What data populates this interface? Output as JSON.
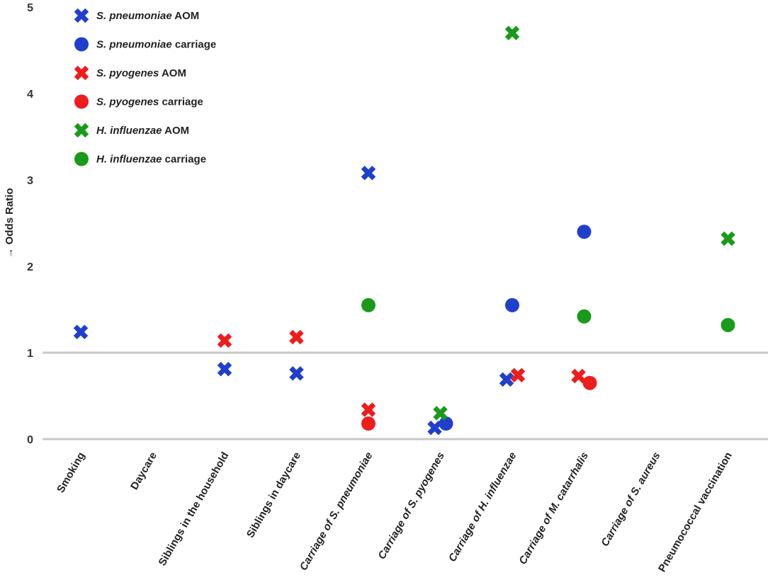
{
  "chart_data": {
    "type": "scatter",
    "ylabel": "→ Odds Ratio",
    "ylim": [
      0,
      5
    ],
    "yticks": [
      "0",
      "1",
      "2",
      "3",
      "4",
      "5"
    ],
    "reference_line": 1,
    "grid": false,
    "legend_position": "top-left",
    "categories": [
      {
        "prefix": "",
        "italic": "",
        "suffix": "Smoking"
      },
      {
        "prefix": "",
        "italic": "",
        "suffix": "Daycare"
      },
      {
        "prefix": "",
        "italic": "",
        "suffix": "Siblings in the household"
      },
      {
        "prefix": "",
        "italic": "",
        "suffix": "Siblings in daycare"
      },
      {
        "prefix": "",
        "italic": "Carriage of S. pneumoniae",
        "suffix": ""
      },
      {
        "prefix": "",
        "italic": "Carriage of S. pyogenes",
        "suffix": ""
      },
      {
        "prefix": "",
        "italic": "Carriage of H. influenzae",
        "suffix": ""
      },
      {
        "prefix": "",
        "italic": "Carriage of M. catarrhalis",
        "suffix": ""
      },
      {
        "prefix": "",
        "italic": "Carriage of S. aureus",
        "suffix": ""
      },
      {
        "prefix": "",
        "italic": "",
        "suffix": "Pneumococcal vaccination"
      }
    ],
    "series": [
      {
        "name": "S. pneumoniae AOM",
        "name_italic": "S. pneumoniae",
        "name_rest": " AOM",
        "color": "#1f3fcc",
        "marker": "cross",
        "points": [
          {
            "cat": 0,
            "value": 1.24
          },
          {
            "cat": 2,
            "value": 0.81
          },
          {
            "cat": 3,
            "value": 0.76
          },
          {
            "cat": 4,
            "value": 3.08
          },
          {
            "cat": 5,
            "value": 0.13
          },
          {
            "cat": 6,
            "value": 0.69
          }
        ]
      },
      {
        "name": "S. pneumoniae carriage",
        "name_italic": "S. pneumoniae",
        "name_rest": " carriage",
        "color": "#1f3fcc",
        "marker": "circle",
        "points": [
          {
            "cat": 5,
            "value": 0.18
          },
          {
            "cat": 6,
            "value": 1.55
          },
          {
            "cat": 7,
            "value": 2.4
          }
        ]
      },
      {
        "name": "S. pyogenes AOM",
        "name_italic": "S. pyogenes",
        "name_rest": " AOM",
        "color": "#ee1c1c",
        "marker": "cross",
        "points": [
          {
            "cat": 2,
            "value": 1.14
          },
          {
            "cat": 3,
            "value": 1.18
          },
          {
            "cat": 4,
            "value": 0.34
          },
          {
            "cat": 6,
            "value": 0.74
          },
          {
            "cat": 7,
            "value": 0.73
          }
        ]
      },
      {
        "name": "S. pyogenes carriage",
        "name_italic": "S. pyogenes",
        "name_rest": " carriage",
        "color": "#ee1c1c",
        "marker": "circle",
        "points": [
          {
            "cat": 4,
            "value": 0.18
          },
          {
            "cat": 7,
            "value": 0.65
          }
        ]
      },
      {
        "name": "H. influenzae AOM",
        "name_italic": "H. influenzae",
        "name_rest": " AOM",
        "color": "#1a9a1a",
        "marker": "cross",
        "points": [
          {
            "cat": 5,
            "value": 0.3
          },
          {
            "cat": 6,
            "value": 4.7
          },
          {
            "cat": 9,
            "value": 2.32
          }
        ]
      },
      {
        "name": "H. influenzae carriage",
        "name_italic": "H. influenzae",
        "name_rest": " carriage",
        "color": "#1a9a1a",
        "marker": "circle",
        "points": [
          {
            "cat": 4,
            "value": 1.55
          },
          {
            "cat": 7,
            "value": 1.42
          },
          {
            "cat": 9,
            "value": 1.32
          }
        ]
      }
    ]
  }
}
